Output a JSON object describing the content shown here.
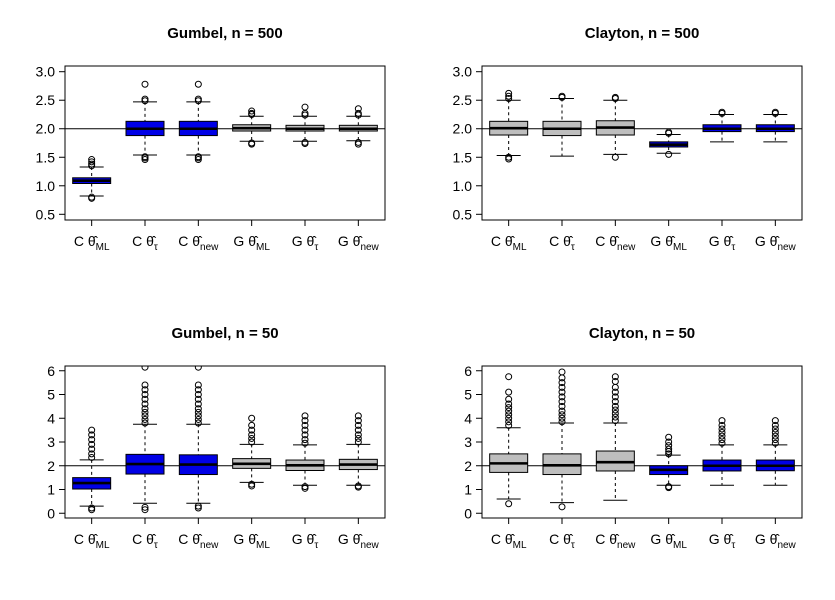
{
  "colors": {
    "blue": "#0000e6",
    "gray": "#bebebe",
    "border": "#000000"
  },
  "chart_data": [
    {
      "type": "boxplot",
      "title": "Gumbel, n = 500",
      "ylim": [
        0.4,
        3.1
      ],
      "yticks": [
        "0.5",
        "1.0",
        "1.5",
        "2.0",
        "2.5",
        "3.0"
      ],
      "reference_line": 2.0,
      "categories": [
        {
          "prefix": "C",
          "sub": "ML"
        },
        {
          "prefix": "C",
          "sub": "τ"
        },
        {
          "prefix": "C",
          "sub": "new"
        },
        {
          "prefix": "G",
          "sub": "ML"
        },
        {
          "prefix": "G",
          "sub": "τ"
        },
        {
          "prefix": "G",
          "sub": "new"
        }
      ],
      "boxes": [
        {
          "fill": "blue",
          "min": 0.82,
          "q1": 1.04,
          "median": 1.09,
          "q3": 1.14,
          "max": 1.33,
          "outliers": [
            0.78,
            0.8,
            1.35,
            1.38,
            1.42,
            1.46
          ]
        },
        {
          "fill": "blue",
          "min": 1.54,
          "q1": 1.88,
          "median": 2.0,
          "q3": 2.13,
          "max": 2.47,
          "outliers": [
            1.46,
            1.49,
            1.51,
            2.49,
            2.52,
            2.78
          ]
        },
        {
          "fill": "blue",
          "min": 1.54,
          "q1": 1.88,
          "median": 2.0,
          "q3": 2.13,
          "max": 2.47,
          "outliers": [
            1.46,
            1.49,
            1.51,
            2.49,
            2.52,
            2.78
          ]
        },
        {
          "fill": "gray",
          "min": 1.78,
          "q1": 1.96,
          "median": 2.01,
          "q3": 2.07,
          "max": 2.22,
          "outliers": [
            1.73,
            1.75,
            2.25,
            2.27,
            2.31
          ]
        },
        {
          "fill": "gray",
          "min": 1.78,
          "q1": 1.96,
          "median": 2.0,
          "q3": 2.06,
          "max": 2.22,
          "outliers": [
            1.74,
            1.76,
            2.24,
            2.27,
            2.38
          ]
        },
        {
          "fill": "gray",
          "min": 1.79,
          "q1": 1.96,
          "median": 2.0,
          "q3": 2.06,
          "max": 2.22,
          "outliers": [
            1.73,
            1.76,
            2.24,
            2.27,
            2.35
          ]
        }
      ]
    },
    {
      "type": "boxplot",
      "title": "Clayton, n = 500",
      "ylim": [
        0.4,
        3.1
      ],
      "yticks": [
        "0.5",
        "1.0",
        "1.5",
        "2.0",
        "2.5",
        "3.0"
      ],
      "reference_line": 2.0,
      "categories": [
        {
          "prefix": "C",
          "sub": "ML"
        },
        {
          "prefix": "C",
          "sub": "τ"
        },
        {
          "prefix": "C",
          "sub": "new"
        },
        {
          "prefix": "G",
          "sub": "ML"
        },
        {
          "prefix": "G",
          "sub": "τ"
        },
        {
          "prefix": "G",
          "sub": "new"
        }
      ],
      "boxes": [
        {
          "fill": "gray",
          "min": 1.53,
          "q1": 1.89,
          "median": 2.01,
          "q3": 2.13,
          "max": 2.5,
          "outliers": [
            1.47,
            1.5,
            2.53,
            2.57,
            2.62
          ]
        },
        {
          "fill": "gray",
          "min": 1.52,
          "q1": 1.88,
          "median": 2.0,
          "q3": 2.13,
          "max": 2.53,
          "outliers": [
            2.55,
            2.57
          ]
        },
        {
          "fill": "gray",
          "min": 1.55,
          "q1": 1.89,
          "median": 2.02,
          "q3": 2.14,
          "max": 2.5,
          "outliers": [
            1.5,
            2.53,
            2.55
          ]
        },
        {
          "fill": "blue",
          "min": 1.57,
          "q1": 1.68,
          "median": 1.72,
          "q3": 1.77,
          "max": 1.9,
          "outliers": [
            1.55,
            1.92,
            1.94
          ]
        },
        {
          "fill": "blue",
          "min": 1.77,
          "q1": 1.95,
          "median": 2.0,
          "q3": 2.07,
          "max": 2.25,
          "outliers": [
            2.27,
            2.29
          ]
        },
        {
          "fill": "blue",
          "min": 1.77,
          "q1": 1.95,
          "median": 2.0,
          "q3": 2.07,
          "max": 2.25,
          "outliers": [
            2.27,
            2.29
          ]
        }
      ]
    },
    {
      "type": "boxplot",
      "title": "Gumbel, n = 50",
      "ylim": [
        -0.2,
        6.2
      ],
      "yticks": [
        "0",
        "1",
        "2",
        "3",
        "4",
        "5",
        "6"
      ],
      "reference_line": 2.0,
      "categories": [
        {
          "prefix": "C",
          "sub": "ML"
        },
        {
          "prefix": "C",
          "sub": "τ"
        },
        {
          "prefix": "C",
          "sub": "new"
        },
        {
          "prefix": "G",
          "sub": "ML"
        },
        {
          "prefix": "G",
          "sub": "τ"
        },
        {
          "prefix": "G",
          "sub": "new"
        }
      ],
      "boxes": [
        {
          "fill": "blue",
          "min": 0.3,
          "q1": 1.02,
          "median": 1.27,
          "q3": 1.5,
          "max": 2.25,
          "outliers": [
            0.15,
            0.22,
            2.35,
            2.5,
            2.7,
            2.9,
            3.1,
            3.3,
            3.5
          ]
        },
        {
          "fill": "blue",
          "min": 0.42,
          "q1": 1.65,
          "median": 2.07,
          "q3": 2.48,
          "max": 3.75,
          "outliers": [
            0.15,
            0.25,
            3.8,
            3.95,
            4.1,
            4.25,
            4.4,
            4.6,
            4.8,
            5.0,
            5.2,
            5.4,
            6.15
          ]
        },
        {
          "fill": "blue",
          "min": 0.42,
          "q1": 1.63,
          "median": 2.05,
          "q3": 2.46,
          "max": 3.75,
          "outliers": [
            0.22,
            0.3,
            3.8,
            3.95,
            4.1,
            4.25,
            4.4,
            4.6,
            4.8,
            5.0,
            5.2,
            5.4,
            6.15
          ]
        },
        {
          "fill": "gray",
          "min": 1.3,
          "q1": 1.89,
          "median": 2.08,
          "q3": 2.3,
          "max": 2.9,
          "outliers": [
            1.15,
            1.22,
            3.0,
            3.15,
            3.3,
            3.5,
            3.7,
            4.0
          ]
        },
        {
          "fill": "gray",
          "min": 1.18,
          "q1": 1.8,
          "median": 2.02,
          "q3": 2.24,
          "max": 2.88,
          "outliers": [
            1.05,
            1.12,
            2.95,
            3.1,
            3.3,
            3.5,
            3.7,
            3.9,
            4.1
          ]
        },
        {
          "fill": "gray",
          "min": 1.18,
          "q1": 1.84,
          "median": 2.05,
          "q3": 2.27,
          "max": 2.9,
          "outliers": [
            1.1,
            1.15,
            3.0,
            3.15,
            3.3,
            3.5,
            3.7,
            3.9,
            4.1
          ]
        }
      ]
    },
    {
      "type": "boxplot",
      "title": "Clayton, n = 50",
      "ylim": [
        -0.2,
        6.2
      ],
      "yticks": [
        "0",
        "1",
        "2",
        "3",
        "4",
        "5",
        "6"
      ],
      "reference_line": 2.0,
      "categories": [
        {
          "prefix": "C",
          "sub": "ML"
        },
        {
          "prefix": "C",
          "sub": "τ"
        },
        {
          "prefix": "C",
          "sub": "new"
        },
        {
          "prefix": "G",
          "sub": "ML"
        },
        {
          "prefix": "G",
          "sub": "τ"
        },
        {
          "prefix": "G",
          "sub": "new"
        }
      ],
      "boxes": [
        {
          "fill": "gray",
          "min": 0.6,
          "q1": 1.72,
          "median": 2.1,
          "q3": 2.5,
          "max": 3.6,
          "outliers": [
            0.4,
            3.7,
            3.85,
            4.0,
            4.15,
            4.3,
            4.45,
            4.6,
            4.8,
            5.1,
            5.75
          ]
        },
        {
          "fill": "gray",
          "min": 0.45,
          "q1": 1.63,
          "median": 2.02,
          "q3": 2.5,
          "max": 3.8,
          "outliers": [
            0.27,
            3.85,
            4.0,
            4.15,
            4.3,
            4.5,
            4.7,
            4.9,
            5.1,
            5.3,
            5.5,
            5.7,
            5.95
          ]
        },
        {
          "fill": "gray",
          "min": 0.55,
          "q1": 1.78,
          "median": 2.15,
          "q3": 2.62,
          "max": 3.8,
          "outliers": [
            3.9,
            4.05,
            4.2,
            4.35,
            4.5,
            4.7,
            4.9,
            5.1,
            5.3,
            5.55,
            5.75
          ]
        },
        {
          "fill": "blue",
          "min": 1.18,
          "q1": 1.63,
          "median": 1.83,
          "q3": 2.0,
          "max": 2.45,
          "outliers": [
            1.08,
            1.12,
            2.5,
            2.6,
            2.7,
            2.85,
            3.0,
            3.2
          ]
        },
        {
          "fill": "blue",
          "min": 1.18,
          "q1": 1.78,
          "median": 2.0,
          "q3": 2.24,
          "max": 2.88,
          "outliers": [
            2.95,
            3.1,
            3.25,
            3.4,
            3.55,
            3.7,
            3.9
          ]
        },
        {
          "fill": "blue",
          "min": 1.18,
          "q1": 1.79,
          "median": 2.0,
          "q3": 2.24,
          "max": 2.88,
          "outliers": [
            2.95,
            3.1,
            3.25,
            3.4,
            3.55,
            3.7,
            3.9
          ]
        }
      ]
    }
  ]
}
